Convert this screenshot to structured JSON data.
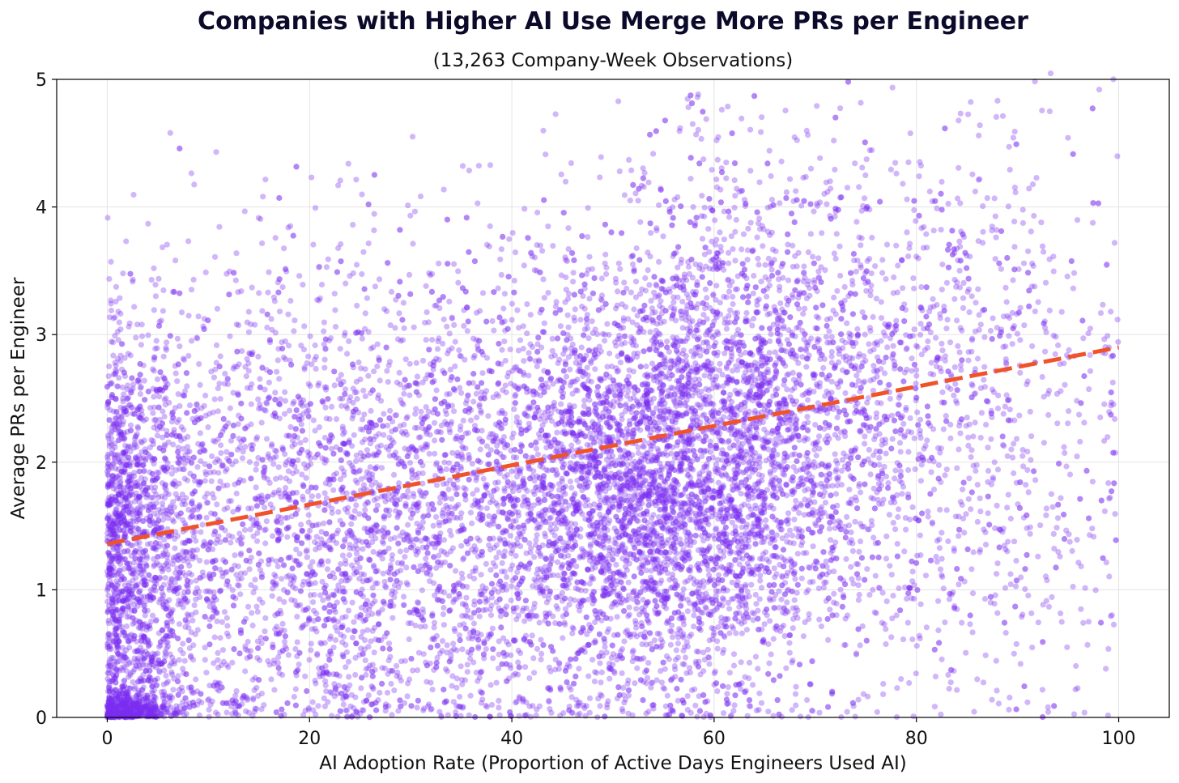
{
  "chart_data": {
    "type": "scatter",
    "title": "Companies with Higher AI Use Merge More PRs per Engineer",
    "subtitle": "(13,263 Company-Week Observations)",
    "xlabel": "AI Adoption Rate (Proportion of Active Days Engineers Used AI)",
    "ylabel": "Average PRs per Engineer",
    "xlim": [
      -5,
      105
    ],
    "ylim": [
      0,
      5
    ],
    "x_ticks": [
      0,
      20,
      40,
      60,
      80,
      100
    ],
    "y_ticks": [
      0,
      1,
      2,
      3,
      4,
      5
    ],
    "x_tick_labels": [
      "0",
      "20",
      "40",
      "60",
      "80",
      "100"
    ],
    "y_tick_labels": [
      "0",
      "1",
      "2",
      "3",
      "4",
      "5"
    ],
    "grid": true,
    "point_color": "#7b2ff2",
    "trend_color": "#f0522a",
    "trendline": {
      "style": "dashed",
      "points": [
        [
          0,
          1.36
        ],
        [
          100,
          2.9
        ]
      ]
    },
    "point_count": 13263,
    "clusters": [
      {
        "x_mean": 3,
        "x_sd": 4,
        "y_mean": 1.2,
        "y_sd": 0.9,
        "weight": 0.14
      },
      {
        "x_mean": 2,
        "x_sd": 2,
        "y_mean": 0.05,
        "y_sd": 0.06,
        "weight": 0.03
      },
      {
        "x_mean": 22,
        "x_sd": 10,
        "y_mean": 1.6,
        "y_sd": 1.0,
        "weight": 0.2
      },
      {
        "x_mean": 50,
        "x_sd": 10,
        "y_mean": 1.7,
        "y_sd": 0.8,
        "weight": 0.3
      },
      {
        "x_mean": 62,
        "x_sd": 9,
        "y_mean": 2.3,
        "y_sd": 1.0,
        "weight": 0.25
      },
      {
        "x_mean": 85,
        "x_sd": 8,
        "y_mean": 2.4,
        "y_sd": 1.2,
        "weight": 0.08
      }
    ]
  }
}
